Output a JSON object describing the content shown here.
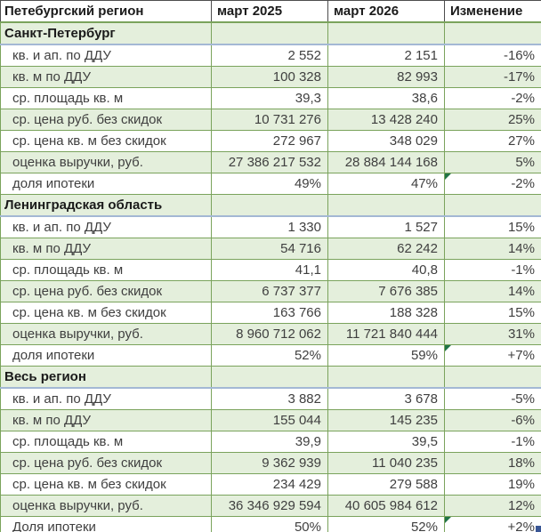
{
  "header": {
    "region_col": "Петебургский регион",
    "col_2025": "март 2025",
    "col_2026": "март 2026",
    "col_change": "Изменение"
  },
  "sections": [
    {
      "name": "Санкт-Петербург",
      "rows": [
        {
          "label": "кв. и ап. по ДДУ",
          "v2025": "2 552",
          "v2026": "2 151",
          "change": "-16%",
          "flagged": false
        },
        {
          "label": "кв. м по ДДУ",
          "v2025": "100 328",
          "v2026": "82 993",
          "change": "-17%",
          "flagged": false
        },
        {
          "label": "ср. площадь кв. м",
          "v2025": "39,3",
          "v2026": "38,6",
          "change": "-2%",
          "flagged": false
        },
        {
          "label": "ср. цена руб. без скидок",
          "v2025": "10 731 276",
          "v2026": "13 428 240",
          "change": "25%",
          "flagged": false
        },
        {
          "label": "ср. цена кв. м без скидок",
          "v2025": "272 967",
          "v2026": "348 029",
          "change": "27%",
          "flagged": false
        },
        {
          "label": "оценка выручки, руб.",
          "v2025": "27 386 217 532",
          "v2026": "28 884 144 168",
          "change": "5%",
          "flagged": false
        },
        {
          "label": "доля ипотеки",
          "v2025": "49%",
          "v2026": "47%",
          "change": "-2%",
          "flagged": true
        }
      ]
    },
    {
      "name": "Ленинградская область",
      "rows": [
        {
          "label": "кв. и ап. по ДДУ",
          "v2025": "1 330",
          "v2026": "1 527",
          "change": "15%",
          "flagged": false
        },
        {
          "label": "кв. м по ДДУ",
          "v2025": "54 716",
          "v2026": "62 242",
          "change": "14%",
          "flagged": false
        },
        {
          "label": "ср. площадь кв. м",
          "v2025": "41,1",
          "v2026": "40,8",
          "change": "-1%",
          "flagged": false
        },
        {
          "label": "ср. цена руб. без скидок",
          "v2025": "6 737 377",
          "v2026": "7 676 385",
          "change": "14%",
          "flagged": false
        },
        {
          "label": "ср. цена кв. м без скидок",
          "v2025": "163 766",
          "v2026": "188 328",
          "change": "15%",
          "flagged": false
        },
        {
          "label": "оценка выручки, руб.",
          "v2025": "8 960 712 062",
          "v2026": "11 721 840 444",
          "change": "31%",
          "flagged": false
        },
        {
          "label": "доля ипотеки",
          "v2025": "52%",
          "v2026": "59%",
          "change": "+7%",
          "flagged": true
        }
      ]
    },
    {
      "name": "Весь регион",
      "rows": [
        {
          "label": "кв. и ап. по ДДУ",
          "v2025": "3 882",
          "v2026": "3 678",
          "change": "-5%",
          "flagged": false
        },
        {
          "label": "кв. м по ДДУ",
          "v2025": "155 044",
          "v2026": "145 235",
          "change": "-6%",
          "flagged": false
        },
        {
          "label": "ср. площадь кв. м",
          "v2025": "39,9",
          "v2026": "39,5",
          "change": "-1%",
          "flagged": false
        },
        {
          "label": "ср. цена руб. без скидок",
          "v2025": "9 362 939",
          "v2026": "11 040 235",
          "change": "18%",
          "flagged": false
        },
        {
          "label": "ср. цена кв. м без скидок",
          "v2025": "234 429",
          "v2026": "279 588",
          "change": "19%",
          "flagged": false
        },
        {
          "label": "оценка выручки, руб.",
          "v2025": "36 346 929 594",
          "v2026": "40 605 984 612",
          "change": "12%",
          "flagged": false
        },
        {
          "label": "Доля ипотеки",
          "v2025": "50%",
          "v2026": "52%",
          "change": "+2%",
          "flagged": true
        }
      ]
    }
  ],
  "colors": {
    "band_fill": "#e4efdc",
    "grid_border": "#7aa35c",
    "header_border": "#4d4d4d",
    "section_divider": "#a3b8d4",
    "error_indicator": "#217346",
    "resize_handle": "#3a5795",
    "text": "#3f3f3f",
    "bold_text": "#1a1a1a"
  },
  "markers": {
    "error_indicator_cells": [
      "Санкт-Петербург/доля ипотеки/Изменение",
      "Ленинградская область/доля ипотеки/Изменение",
      "Весь регион/Доля ипотеки/Изменение"
    ],
    "resize_handle": "table-resize-handle"
  }
}
